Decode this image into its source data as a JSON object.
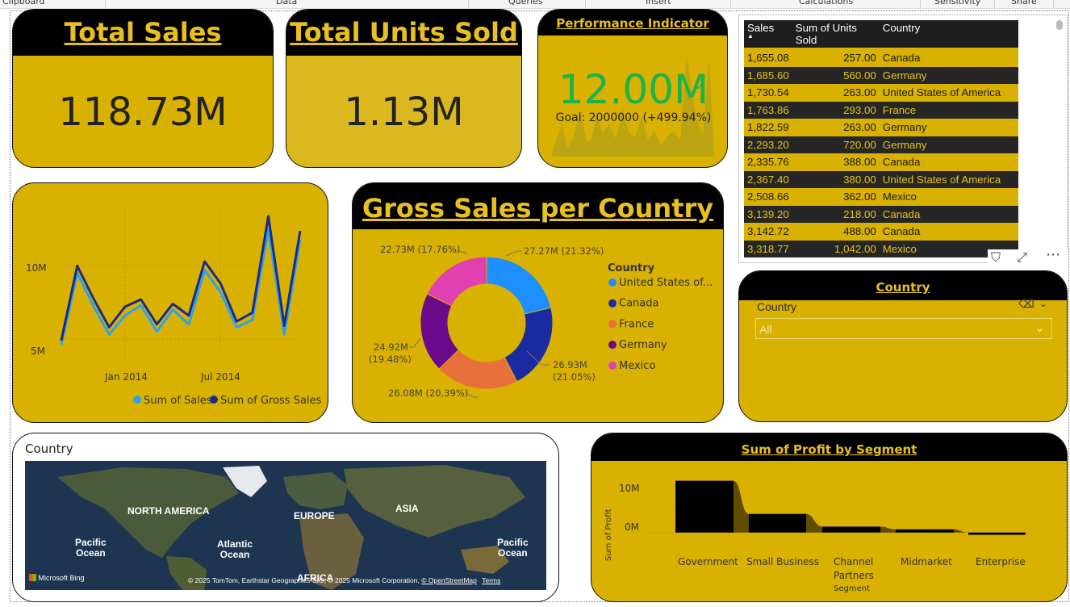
{
  "ribbon": {
    "groups": [
      "Clipboard",
      "Data",
      "Queries",
      "Insert",
      "Calculations",
      "Sensitivity",
      "Share"
    ]
  },
  "kpi_total_sales": {
    "title": "Total Sales",
    "value": "118.73M"
  },
  "kpi_total_units": {
    "title": "Total Units Sold",
    "value": "1.13M"
  },
  "performance": {
    "title": "Performance Indicator",
    "value": "12.00M",
    "goal": "Goal: 2000000 (+499.94%)",
    "status_color": "#1bb34a"
  },
  "sales_table": {
    "headers": [
      "Sales",
      "Sum of Units Sold",
      "Country"
    ],
    "rows": [
      [
        "1,655.08",
        "257.00",
        "Canada"
      ],
      [
        "1,685.60",
        "560.00",
        "Germany"
      ],
      [
        "1,730.54",
        "263.00",
        "United States of America"
      ],
      [
        "1,763.86",
        "293.00",
        "France"
      ],
      [
        "1,822.59",
        "263.00",
        "Germany"
      ],
      [
        "2,293.20",
        "720.00",
        "Germany"
      ],
      [
        "2,335.76",
        "388.00",
        "Canada"
      ],
      [
        "2,367.40",
        "380.00",
        "United States of America"
      ],
      [
        "2,508.66",
        "362.00",
        "Mexico"
      ],
      [
        "3,139.20",
        "218.00",
        "Canada"
      ],
      [
        "3,142.72",
        "488.00",
        "Canada"
      ],
      [
        "3,318.77",
        "1,042.00",
        "Mexico"
      ]
    ]
  },
  "line_chart": {
    "ytick_10m": "10M",
    "ytick_5m": "5M",
    "xtick_jan": "Jan 2014",
    "xtick_jul": "Jul 2014",
    "legend_sales": "Sum of Sales",
    "legend_gross": "Sum of Gross Sales"
  },
  "donut": {
    "title": "Gross Sales per Country",
    "legend_title": "Country",
    "legend_items": [
      "United States of...",
      "Canada",
      "France",
      "Germany",
      "Mexico"
    ],
    "label_usa": "27.27M (21.32%)",
    "label_canada_1": "26.93M",
    "label_canada_2": "(21.05%)",
    "label_france": "26.08M (20.39%)",
    "label_germany_1": "24.92M",
    "label_germany_2": "(19.48%)",
    "label_mexico": "22.73M (17.76%)"
  },
  "slicer": {
    "header": "Country",
    "label": "Country",
    "value": "All"
  },
  "map": {
    "title": "Country",
    "labels": {
      "na": "NORTH AMERICA",
      "europe": "EUROPE",
      "asia": "ASIA",
      "africa": "AFRICA",
      "pacific1": "Pacific\nOcean",
      "atlantic": "Atlantic\nOcean",
      "pacific2": "Pacific\nOcean"
    },
    "bing": "Microsoft Bing",
    "copyright": "© 2025 TomTom, Earthstar Geographics SIO, © 2025 Microsoft Corporation,",
    "osm": "© OpenStreetMap",
    "terms": "Terms"
  },
  "ribbon_chart": {
    "title": "Sum of Profit by Segment",
    "ylabel": "Sum of Profit",
    "ytick_10m": "10M",
    "ytick_0m": "0M",
    "segments": [
      "Government",
      "Small Business",
      "Channel",
      "Midmarket",
      "Enterprise"
    ],
    "segment_channel_2": "Partners",
    "xlabel": "Segment"
  },
  "chart_data": [
    {
      "type": "line",
      "title": "",
      "xlabel": "",
      "ylabel": "",
      "x": [
        "Sep 2013",
        "Oct 2013",
        "Nov 2013",
        "Dec 2013",
        "Jan 2014",
        "Feb 2014",
        "Mar 2014",
        "Apr 2014",
        "May 2014",
        "Jun 2014",
        "Jul 2014",
        "Aug 2014",
        "Sep 2014",
        "Oct 2014",
        "Nov 2014",
        "Dec 2014"
      ],
      "series": [
        {
          "name": "Sum of Sales",
          "color": "#2ba3f0",
          "values": [
            4.6,
            9.5,
            7.3,
            5.3,
            6.6,
            7.3,
            5.5,
            7.0,
            6.0,
            9.7,
            8.2,
            5.8,
            6.3,
            12.5,
            5.3,
            11.8
          ]
        },
        {
          "name": "Sum of Gross Sales",
          "color": "#1c2a8c",
          "values": [
            4.9,
            10.0,
            7.8,
            5.8,
            7.2,
            7.7,
            6.0,
            7.4,
            6.6,
            10.3,
            8.8,
            6.2,
            6.8,
            13.4,
            5.9,
            12.4
          ]
        }
      ],
      "ylim": [
        3.5,
        14
      ],
      "legend": "bottom-right"
    },
    {
      "type": "pie",
      "title": "Gross Sales per Country",
      "categories": [
        "United States of America",
        "Canada",
        "France",
        "Germany",
        "Mexico"
      ],
      "values": [
        27.27,
        26.93,
        26.08,
        24.92,
        22.73
      ],
      "percents": [
        21.32,
        21.05,
        20.39,
        19.48,
        17.76
      ],
      "colors": [
        "#1e8fff",
        "#1a2aa0",
        "#e8703a",
        "#6b0a8a",
        "#e040b0"
      ],
      "legend": "right"
    },
    {
      "type": "area",
      "title": "Sum of Profit by Segment",
      "xlabel": "Segment",
      "ylabel": "Sum of Profit",
      "categories": [
        "Government",
        "Small Business",
        "Channel Partners",
        "Midmarket",
        "Enterprise"
      ],
      "values": [
        11.4,
        4.1,
        1.3,
        0.7,
        -0.5
      ],
      "ylim": [
        -2,
        14
      ]
    }
  ]
}
